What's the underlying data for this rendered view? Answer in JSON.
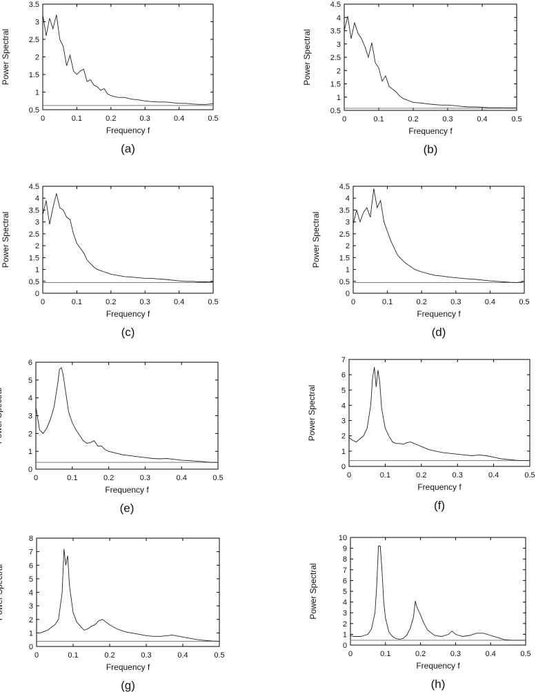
{
  "chart_data": [
    {
      "type": "line",
      "panel_label": "(a)",
      "xlabel": "Frequency f",
      "ylabel": "Power Spectral",
      "xlim": [
        0,
        0.5
      ],
      "ylim": [
        0.5,
        3.5
      ],
      "xticks": [
        "0",
        "0.1",
        "0.2",
        "0.3",
        "0.4",
        "0.5"
      ],
      "yticks": [
        "0.5",
        "1",
        "1.5",
        "2",
        "2.5",
        "3",
        "3.5"
      ],
      "baseline": 0.62,
      "x": [
        0,
        0.01,
        0.02,
        0.03,
        0.04,
        0.05,
        0.06,
        0.07,
        0.08,
        0.09,
        0.1,
        0.11,
        0.12,
        0.13,
        0.14,
        0.15,
        0.16,
        0.17,
        0.18,
        0.19,
        0.2,
        0.22,
        0.24,
        0.26,
        0.28,
        0.3,
        0.32,
        0.34,
        0.36,
        0.38,
        0.4,
        0.42,
        0.44,
        0.46,
        0.48,
        0.5
      ],
      "y": [
        3.2,
        2.6,
        3.1,
        2.8,
        3.2,
        2.5,
        2.3,
        1.75,
        2.05,
        1.6,
        1.5,
        1.6,
        1.65,
        1.3,
        1.35,
        1.2,
        1.15,
        1.05,
        1.1,
        0.95,
        0.9,
        0.85,
        0.85,
        0.8,
        0.78,
        0.75,
        0.73,
        0.72,
        0.72,
        0.7,
        0.68,
        0.68,
        0.66,
        0.65,
        0.65,
        0.67
      ]
    },
    {
      "type": "line",
      "panel_label": "(b)",
      "xlabel": "Frequency f",
      "ylabel": "Power Spectral",
      "xlim": [
        0,
        0.5
      ],
      "ylim": [
        0.5,
        4.5
      ],
      "xticks": [
        "0",
        "0.1",
        "0.2",
        "0.3",
        "0.4",
        "0.5"
      ],
      "yticks": [
        "0.5",
        "1",
        "1.5",
        "2",
        "2.5",
        "3",
        "3.5",
        "4",
        "4.5"
      ],
      "baseline": 0.58,
      "x": [
        0,
        0.01,
        0.02,
        0.03,
        0.04,
        0.05,
        0.06,
        0.07,
        0.08,
        0.09,
        0.1,
        0.11,
        0.12,
        0.13,
        0.14,
        0.15,
        0.16,
        0.17,
        0.18,
        0.19,
        0.2,
        0.22,
        0.24,
        0.26,
        0.28,
        0.3,
        0.32,
        0.34,
        0.36,
        0.38,
        0.4,
        0.42,
        0.44,
        0.46,
        0.48,
        0.5
      ],
      "y": [
        3.5,
        4.05,
        3.2,
        3.8,
        3.4,
        3.2,
        2.9,
        2.5,
        3.05,
        2.3,
        2.1,
        1.6,
        1.8,
        1.4,
        1.3,
        1.2,
        1.05,
        0.95,
        0.9,
        0.85,
        0.8,
        0.78,
        0.75,
        0.72,
        0.7,
        0.7,
        0.68,
        0.65,
        0.63,
        0.63,
        0.62,
        0.6,
        0.6,
        0.6,
        0.59,
        0.6
      ]
    },
    {
      "type": "line",
      "panel_label": "(c)",
      "xlabel": "Frequency f",
      "ylabel": "Power Spectral",
      "xlim": [
        0,
        0.5
      ],
      "ylim": [
        0,
        4.5
      ],
      "xticks": [
        "0",
        "0.1",
        "0.2",
        "0.3",
        "0.4",
        "0.5"
      ],
      "yticks": [
        "0",
        "0.5",
        "1",
        "1.5",
        "2",
        "2.5",
        "3",
        "3.5",
        "4",
        "4.5"
      ],
      "baseline": 0.45,
      "x": [
        0,
        0.01,
        0.02,
        0.03,
        0.04,
        0.05,
        0.06,
        0.07,
        0.08,
        0.09,
        0.1,
        0.11,
        0.12,
        0.13,
        0.14,
        0.15,
        0.16,
        0.17,
        0.18,
        0.19,
        0.2,
        0.22,
        0.24,
        0.26,
        0.28,
        0.3,
        0.32,
        0.34,
        0.36,
        0.38,
        0.4,
        0.42,
        0.44,
        0.46,
        0.48,
        0.5
      ],
      "y": [
        3.3,
        3.9,
        2.9,
        3.6,
        4.2,
        3.6,
        3.5,
        3.2,
        3.1,
        2.5,
        2.1,
        1.9,
        1.7,
        1.4,
        1.25,
        1.1,
        1.0,
        0.95,
        0.9,
        0.85,
        0.8,
        0.75,
        0.7,
        0.68,
        0.65,
        0.63,
        0.62,
        0.6,
        0.58,
        0.55,
        0.52,
        0.5,
        0.5,
        0.48,
        0.48,
        0.47
      ]
    },
    {
      "type": "line",
      "panel_label": "(d)",
      "xlabel": "Frequency f",
      "ylabel": "Power Spectral",
      "xlim": [
        0,
        0.5
      ],
      "ylim": [
        0,
        4.5
      ],
      "xticks": [
        "0",
        "0.1",
        "0.2",
        "0.3",
        "0.4",
        "0.5"
      ],
      "yticks": [
        "0",
        "0.5",
        "1",
        "1.5",
        "2",
        "2.5",
        "3",
        "3.5",
        "4",
        "4.5"
      ],
      "baseline": 0.45,
      "x": [
        0,
        0.01,
        0.02,
        0.03,
        0.04,
        0.05,
        0.06,
        0.07,
        0.08,
        0.09,
        0.1,
        0.11,
        0.12,
        0.13,
        0.14,
        0.15,
        0.16,
        0.17,
        0.18,
        0.19,
        0.2,
        0.22,
        0.24,
        0.26,
        0.28,
        0.3,
        0.32,
        0.34,
        0.36,
        0.38,
        0.4,
        0.42,
        0.44,
        0.46,
        0.48,
        0.5
      ],
      "y": [
        2.9,
        3.5,
        3.0,
        3.4,
        3.6,
        3.2,
        4.4,
        3.6,
        3.9,
        3.0,
        2.6,
        2.2,
        1.9,
        1.6,
        1.45,
        1.3,
        1.2,
        1.1,
        1.0,
        0.95,
        0.9,
        0.82,
        0.75,
        0.72,
        0.68,
        0.65,
        0.62,
        0.6,
        0.58,
        0.55,
        0.52,
        0.5,
        0.48,
        0.46,
        0.45,
        0.5
      ]
    },
    {
      "type": "line",
      "panel_label": "(e)",
      "xlabel": "Frequency f",
      "ylabel": "Power Spectral",
      "xlim": [
        0,
        0.5
      ],
      "ylim": [
        0,
        6
      ],
      "xticks": [
        "0",
        "0.1",
        "0.2",
        "0.3",
        "0.4",
        "0.5"
      ],
      "yticks": [
        "0",
        "1",
        "2",
        "3",
        "4",
        "5",
        "6"
      ],
      "baseline": 0.38,
      "x": [
        0,
        0.01,
        0.02,
        0.03,
        0.04,
        0.05,
        0.06,
        0.065,
        0.07,
        0.075,
        0.08,
        0.09,
        0.1,
        0.11,
        0.12,
        0.13,
        0.14,
        0.15,
        0.16,
        0.17,
        0.18,
        0.19,
        0.2,
        0.22,
        0.24,
        0.26,
        0.28,
        0.3,
        0.32,
        0.34,
        0.36,
        0.38,
        0.4,
        0.42,
        0.44,
        0.46,
        0.48,
        0.5
      ],
      "y": [
        3.5,
        2.2,
        2.0,
        2.3,
        2.8,
        3.5,
        4.8,
        5.6,
        5.7,
        5.3,
        4.6,
        3.2,
        2.6,
        2.2,
        1.9,
        1.6,
        1.45,
        1.5,
        1.6,
        1.3,
        1.3,
        1.1,
        1.0,
        0.9,
        0.8,
        0.75,
        0.7,
        0.65,
        0.6,
        0.58,
        0.6,
        0.55,
        0.5,
        0.48,
        0.45,
        0.42,
        0.38,
        0.38
      ]
    },
    {
      "type": "line",
      "panel_label": "(f)",
      "xlabel": "Frequency f",
      "ylabel": "Power Spectral",
      "xlim": [
        0,
        0.5
      ],
      "ylim": [
        0,
        7
      ],
      "xticks": [
        "0",
        "0.1",
        "0.2",
        "0.3",
        "0.4",
        "0.5"
      ],
      "yticks": [
        "0",
        "1",
        "2",
        "3",
        "4",
        "5",
        "6",
        "7"
      ],
      "baseline": 0.38,
      "x": [
        0,
        0.01,
        0.02,
        0.03,
        0.04,
        0.05,
        0.06,
        0.065,
        0.07,
        0.075,
        0.08,
        0.085,
        0.09,
        0.1,
        0.11,
        0.12,
        0.13,
        0.14,
        0.15,
        0.16,
        0.17,
        0.18,
        0.19,
        0.2,
        0.22,
        0.24,
        0.26,
        0.28,
        0.3,
        0.32,
        0.34,
        0.36,
        0.38,
        0.4,
        0.42,
        0.44,
        0.46,
        0.48,
        0.5
      ],
      "y": [
        1.9,
        1.7,
        1.6,
        1.8,
        2.0,
        2.5,
        4.0,
        5.8,
        6.5,
        5.2,
        6.3,
        5.5,
        3.8,
        2.5,
        2.0,
        1.6,
        1.5,
        1.5,
        1.45,
        1.55,
        1.6,
        1.5,
        1.4,
        1.3,
        1.1,
        1.0,
        0.9,
        0.85,
        0.8,
        0.75,
        0.7,
        0.75,
        0.7,
        0.6,
        0.5,
        0.45,
        0.4,
        0.38,
        0.38
      ]
    },
    {
      "type": "line",
      "panel_label": "(g)",
      "xlabel": "Frequency f",
      "ylabel": "Power Spectral",
      "xlim": [
        0,
        0.5
      ],
      "ylim": [
        0,
        8
      ],
      "xticks": [
        "0",
        "0.1",
        "0.2",
        "0.3",
        "0.4",
        "0.5"
      ],
      "yticks": [
        "0",
        "1",
        "2",
        "3",
        "4",
        "5",
        "6",
        "7",
        "8"
      ],
      "baseline": 0.38,
      "x": [
        0,
        0.01,
        0.02,
        0.03,
        0.04,
        0.05,
        0.06,
        0.07,
        0.075,
        0.08,
        0.085,
        0.09,
        0.1,
        0.11,
        0.12,
        0.13,
        0.14,
        0.15,
        0.16,
        0.17,
        0.18,
        0.19,
        0.2,
        0.22,
        0.24,
        0.26,
        0.28,
        0.3,
        0.32,
        0.34,
        0.36,
        0.37,
        0.38,
        0.4,
        0.42,
        0.44,
        0.46,
        0.48,
        0.5
      ],
      "y": [
        1.0,
        1.0,
        1.1,
        1.2,
        1.4,
        1.6,
        2.0,
        4.0,
        7.2,
        6.0,
        6.7,
        4.5,
        2.5,
        1.8,
        1.5,
        1.2,
        1.3,
        1.5,
        1.6,
        1.9,
        2.0,
        1.8,
        1.6,
        1.3,
        1.1,
        1.0,
        0.9,
        0.8,
        0.75,
        0.75,
        0.8,
        0.85,
        0.8,
        0.7,
        0.6,
        0.5,
        0.45,
        0.4,
        0.38
      ]
    },
    {
      "type": "line",
      "panel_label": "(h)",
      "xlabel": "Frequency f",
      "ylabel": "Power Spectral",
      "xlim": [
        0,
        0.5
      ],
      "ylim": [
        0,
        10
      ],
      "xticks": [
        "0",
        "0.1",
        "0.2",
        "0.3",
        "0.4",
        "0.5"
      ],
      "yticks": [
        "0",
        "1",
        "2",
        "3",
        "4",
        "5",
        "6",
        "7",
        "8",
        "9",
        "10"
      ],
      "baseline": 0.45,
      "x": [
        0,
        0.01,
        0.02,
        0.03,
        0.04,
        0.05,
        0.06,
        0.07,
        0.075,
        0.08,
        0.085,
        0.09,
        0.095,
        0.1,
        0.11,
        0.12,
        0.13,
        0.14,
        0.15,
        0.16,
        0.17,
        0.18,
        0.185,
        0.19,
        0.2,
        0.21,
        0.22,
        0.24,
        0.26,
        0.28,
        0.29,
        0.3,
        0.32,
        0.34,
        0.36,
        0.38,
        0.4,
        0.42,
        0.44,
        0.46,
        0.48,
        0.5
      ],
      "y": [
        0.9,
        0.8,
        0.8,
        0.8,
        0.9,
        1.0,
        1.5,
        3.0,
        5.5,
        9.2,
        9.2,
        7.0,
        4.0,
        2.5,
        1.2,
        0.8,
        0.6,
        0.55,
        0.6,
        0.9,
        1.5,
        2.6,
        4.1,
        3.5,
        2.8,
        2.0,
        1.4,
        0.9,
        0.8,
        1.0,
        1.3,
        1.0,
        0.8,
        0.9,
        1.1,
        1.1,
        0.9,
        0.7,
        0.5,
        0.45,
        0.45,
        0.45
      ]
    }
  ]
}
